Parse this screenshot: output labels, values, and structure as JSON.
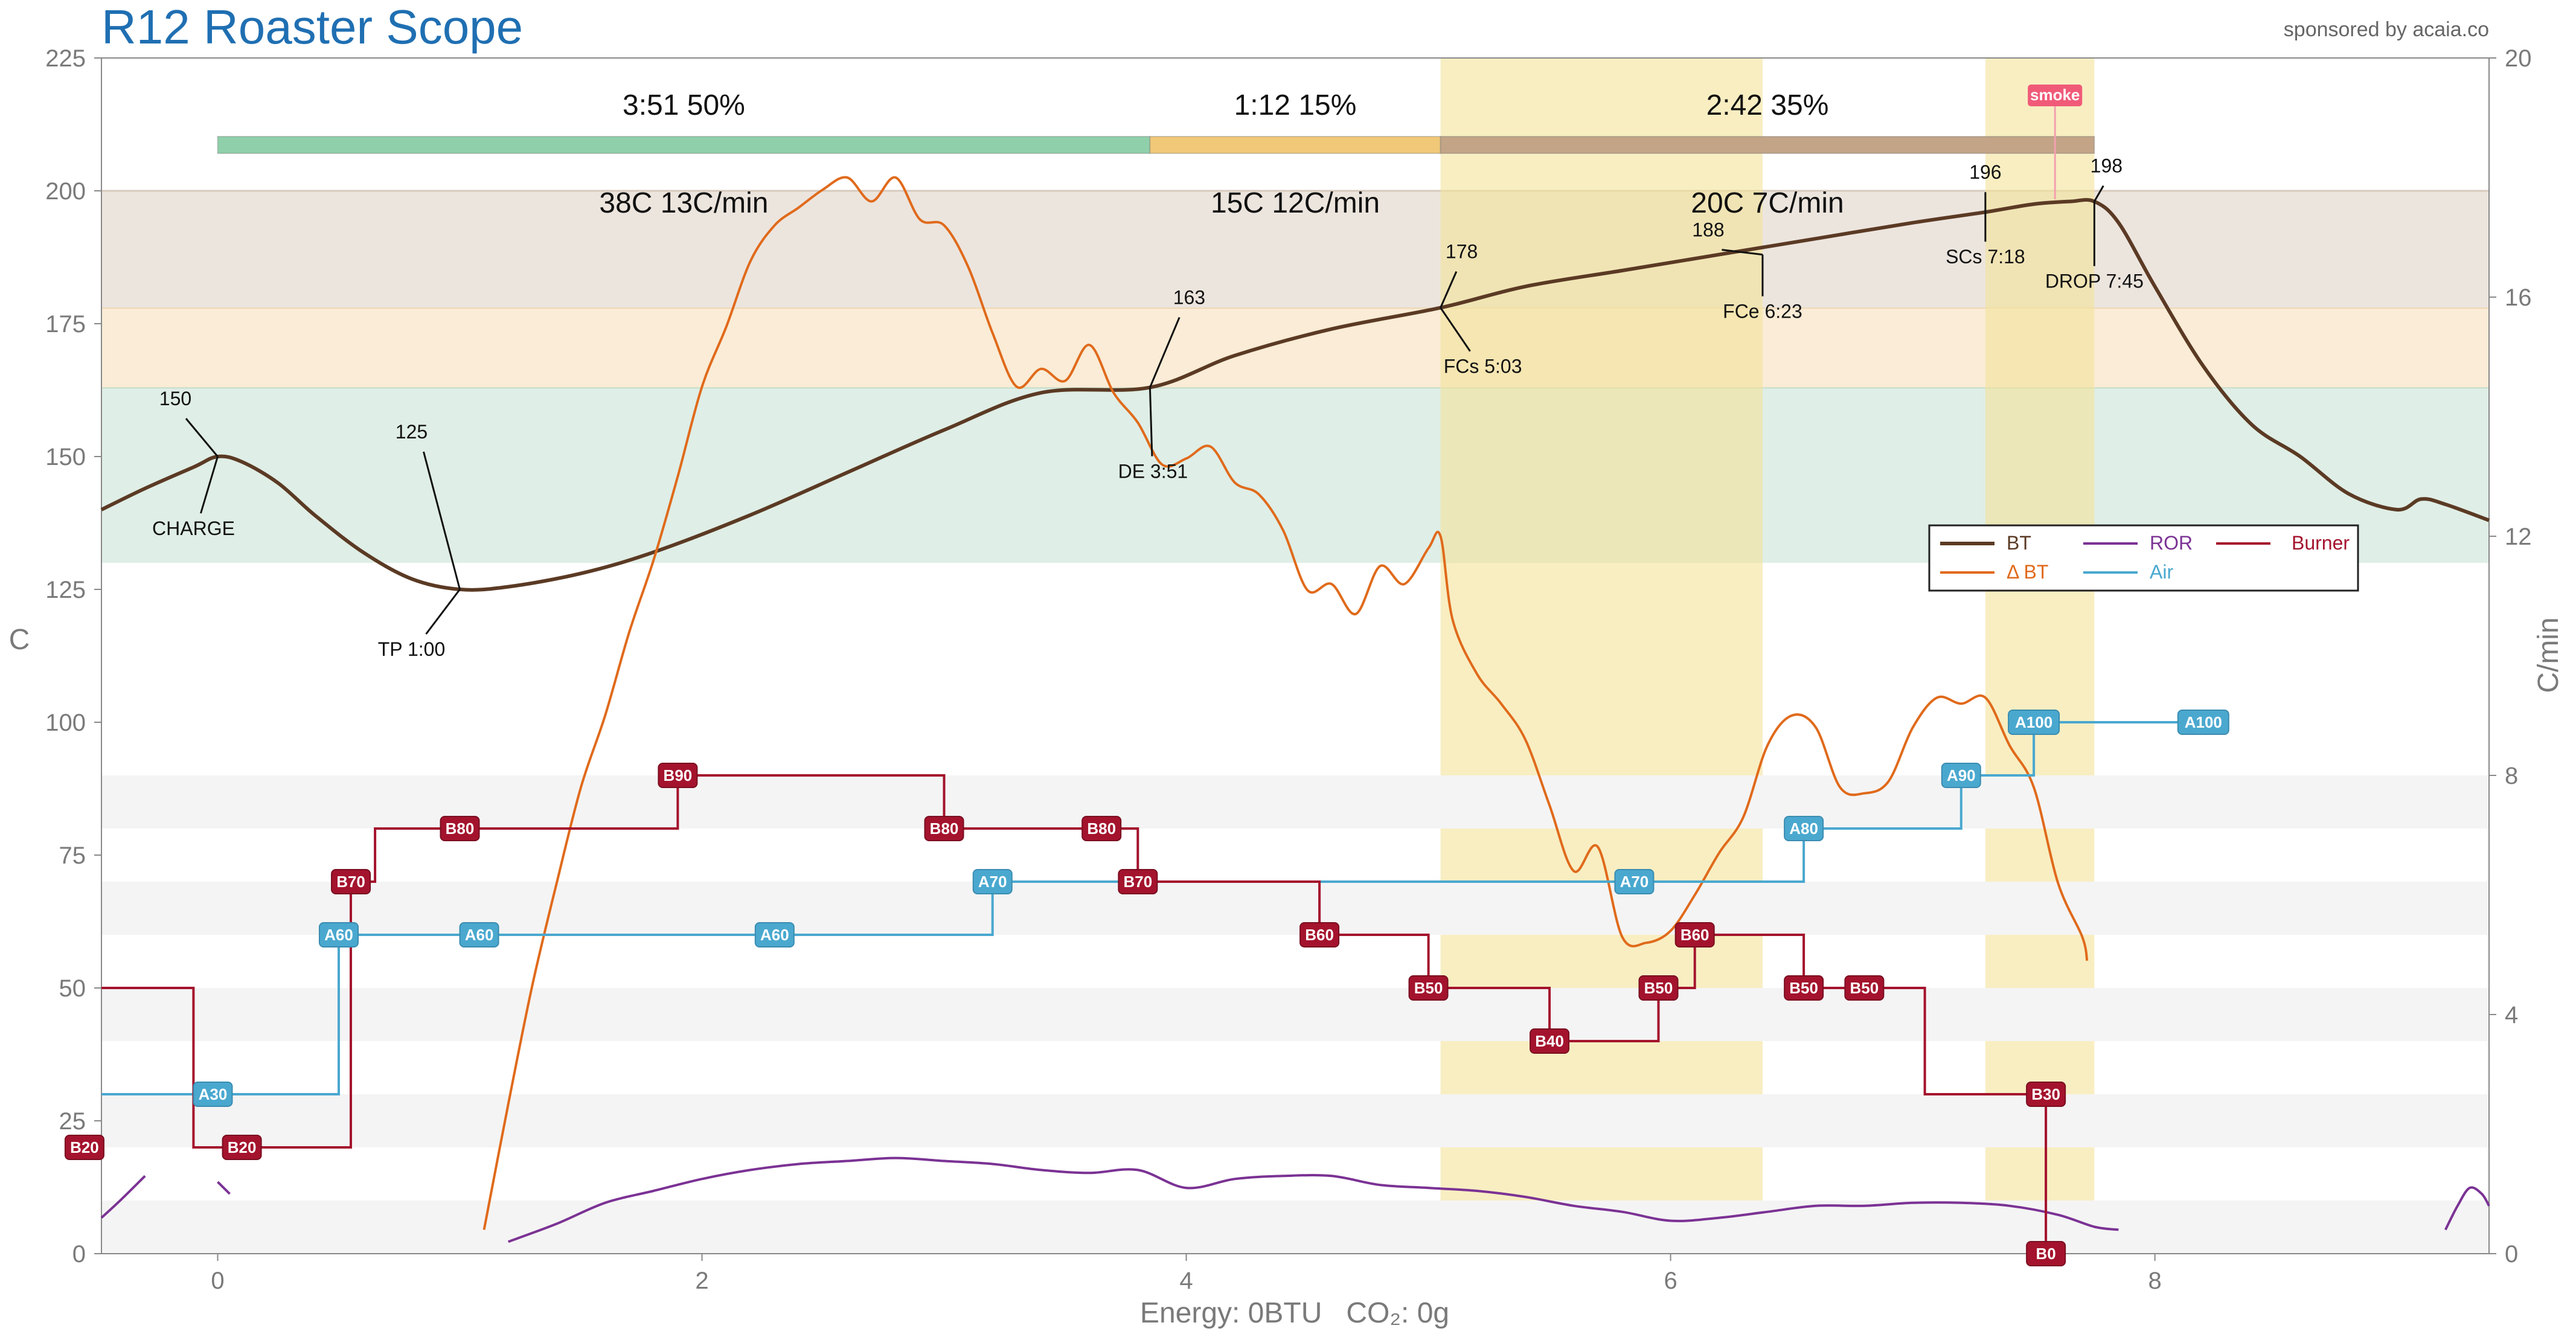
{
  "app_title": "R12 Roaster Scope",
  "sponsor": "sponsored by acaia.co",
  "footer": "Energy: 0BTU   CO₂: 0g",
  "colors": {
    "bt": "#5b3a24",
    "dbt": "#e06a1b",
    "ror": "#7b3294",
    "air": "#4aa8cf",
    "burner": "#a4132d",
    "green_band": "#dfeee6",
    "yellow_band": "#faecd6",
    "brown_band": "#ece5de",
    "fc_band": "#f3e39a",
    "phase_dry": "#8fd0aa",
    "phase_mai": "#f0c878",
    "phase_dev": "#c3a487"
  },
  "chart_data": {
    "type": "line",
    "title": "R12 Roaster Scope",
    "xlabel": "Energy: 0BTU   CO₂: 0g",
    "ylabel": "C",
    "y2label": "C/min",
    "xlim": [
      -0.48,
      9.38
    ],
    "ylim": [
      0,
      225
    ],
    "y2lim": [
      0,
      20
    ],
    "x_ticks": [
      "0",
      "2",
      "4",
      "6",
      "8"
    ],
    "y_ticks": [
      "0",
      "25",
      "50",
      "75",
      "100",
      "125",
      "150",
      "175",
      "200",
      "225"
    ],
    "y2_ticks": [
      "0",
      "4",
      "8",
      "12",
      "16",
      "20"
    ],
    "bands_y": [
      {
        "from": 130,
        "to": 163,
        "color": "green"
      },
      {
        "from": 163,
        "to": 178,
        "color": "yellow"
      },
      {
        "from": 178,
        "to": 200,
        "color": "brown"
      }
    ],
    "bands_x": [
      {
        "from": 5.05,
        "to": 6.38
      },
      {
        "from": 7.3,
        "to": 7.75
      }
    ],
    "phases": [
      {
        "label": "3:51  50%",
        "delta": "38C  13C/min",
        "from": 0.0,
        "to": 3.85,
        "color": "dry"
      },
      {
        "label": "1:12  15%",
        "delta": "15C  12C/min",
        "from": 3.85,
        "to": 5.05,
        "color": "mai"
      },
      {
        "label": "2:42  35%",
        "delta": "20C  7C/min",
        "from": 5.05,
        "to": 7.75,
        "color": "dev"
      }
    ],
    "events": [
      {
        "label": "CHARGE",
        "temp": "150",
        "x": 0.0,
        "y": 150,
        "dir": "down"
      },
      {
        "label": "TP 1:00",
        "temp": "125",
        "x": 1.0,
        "y": 125,
        "dir": "down"
      },
      {
        "label": "DE 3:51",
        "temp": "163",
        "x": 3.85,
        "y": 163,
        "dir": "down"
      },
      {
        "label": "FCs 5:03",
        "temp": "178",
        "x": 5.05,
        "y": 178,
        "dir": "down"
      },
      {
        "label": "FCe 6:23",
        "temp": "188",
        "x": 6.38,
        "y": 188,
        "dir": "down"
      },
      {
        "label": "SCs 7:18",
        "temp": "196",
        "x": 7.3,
        "y": 196,
        "dir": "down"
      },
      {
        "label": "DROP 7:45",
        "temp": "198",
        "x": 7.75,
        "y": 198,
        "dir": "down"
      }
    ],
    "smoke": {
      "label": "smoke",
      "x": 7.6
    },
    "series": [
      {
        "name": "BT",
        "key": "bt",
        "axis": "left",
        "x": [
          -0.48,
          -0.3,
          -0.1,
          0.0,
          0.1,
          0.25,
          0.4,
          0.6,
          0.8,
          1.0,
          1.2,
          1.5,
          1.8,
          2.2,
          2.6,
          3.0,
          3.4,
          3.85,
          4.2,
          4.6,
          5.05,
          5.4,
          5.8,
          6.2,
          6.6,
          7.0,
          7.3,
          7.5,
          7.65,
          7.75,
          7.85,
          8.0,
          8.2,
          8.4,
          8.6,
          8.8,
          9.0,
          9.1,
          9.2,
          9.38
        ],
        "y": [
          140,
          144,
          148,
          150,
          149,
          145,
          139,
          132,
          127,
          125,
          125.5,
          128,
          132,
          139,
          147,
          155,
          162,
          163,
          169,
          174,
          178,
          182,
          185,
          188,
          191,
          194,
          196,
          197.5,
          198,
          198,
          194,
          182,
          167,
          156,
          150,
          143,
          140,
          142,
          141,
          138
        ]
      },
      {
        "name": "ΔBT",
        "key": "dbt",
        "axis": "right",
        "x": [
          1.1,
          1.2,
          1.3,
          1.4,
          1.5,
          1.6,
          1.7,
          1.8,
          1.9,
          2.0,
          2.1,
          2.2,
          2.3,
          2.4,
          2.5,
          2.6,
          2.7,
          2.8,
          2.9,
          3.0,
          3.1,
          3.2,
          3.3,
          3.4,
          3.5,
          3.6,
          3.7,
          3.8,
          3.9,
          4.0,
          4.1,
          4.2,
          4.3,
          4.4,
          4.5,
          4.6,
          4.7,
          4.8,
          4.9,
          5.0,
          5.05,
          5.1,
          5.2,
          5.3,
          5.4,
          5.5,
          5.6,
          5.7,
          5.8,
          5.9,
          6.0,
          6.1,
          6.2,
          6.3,
          6.4,
          6.5,
          6.6,
          6.7,
          6.8,
          6.9,
          7.0,
          7.1,
          7.2,
          7.3,
          7.4,
          7.5,
          7.6,
          7.7,
          7.72
        ],
        "y": [
          0.4,
          2.5,
          4.5,
          6.2,
          7.8,
          9.0,
          10.4,
          11.6,
          13.0,
          14.5,
          15.5,
          16.6,
          17.2,
          17.5,
          17.8,
          18.0,
          17.6,
          18.0,
          17.3,
          17.2,
          16.5,
          15.4,
          14.5,
          14.8,
          14.6,
          15.2,
          14.4,
          13.9,
          13.2,
          13.3,
          13.5,
          12.9,
          12.7,
          12.1,
          11.1,
          11.2,
          10.7,
          11.5,
          11.2,
          11.8,
          12.0,
          10.6,
          9.7,
          9.2,
          8.6,
          7.5,
          6.4,
          6.8,
          5.3,
          5.2,
          5.4,
          6.0,
          6.7,
          7.3,
          8.5,
          9.0,
          8.8,
          7.8,
          7.7,
          7.9,
          8.8,
          9.3,
          9.2,
          9.3,
          8.5,
          7.8,
          6.2,
          5.3,
          4.9
        ]
      },
      {
        "name": "ROR",
        "key": "ror",
        "axis": "right",
        "segments": [
          {
            "x": [
              -0.48,
              -0.4,
              -0.3
            ],
            "y": [
              0.6,
              0.9,
              1.3
            ]
          },
          {
            "x": [
              0.0,
              0.05
            ],
            "y": [
              1.2,
              1.0
            ]
          },
          {
            "x": [
              1.2,
              1.4,
              1.6,
              1.8,
              2.0,
              2.2,
              2.4,
              2.6,
              2.8,
              3.0,
              3.2,
              3.4,
              3.6,
              3.8,
              4.0,
              4.2,
              4.4,
              4.6,
              4.8,
              5.0,
              5.2,
              5.4,
              5.6,
              5.8,
              6.0,
              6.2,
              6.4,
              6.6,
              6.8,
              7.0,
              7.2,
              7.4,
              7.6,
              7.75,
              7.85
            ],
            "y": [
              0.2,
              0.5,
              0.85,
              1.05,
              1.25,
              1.4,
              1.5,
              1.55,
              1.6,
              1.55,
              1.5,
              1.4,
              1.35,
              1.4,
              1.1,
              1.25,
              1.3,
              1.3,
              1.15,
              1.1,
              1.05,
              0.95,
              0.8,
              0.7,
              0.55,
              0.6,
              0.7,
              0.8,
              0.8,
              0.85,
              0.85,
              0.8,
              0.65,
              0.45,
              0.4
            ]
          },
          {
            "x": [
              9.2,
              9.25,
              9.3,
              9.35,
              9.38
            ],
            "y": [
              0.4,
              0.8,
              1.1,
              1.0,
              0.8
            ]
          }
        ]
      },
      {
        "name": "Air",
        "key": "air",
        "axis": "left",
        "steps": [
          [
            -0.48,
            30
          ],
          [
            0.5,
            30
          ],
          [
            0.5,
            60
          ],
          [
            3.2,
            60
          ],
          [
            3.2,
            70
          ],
          [
            6.55,
            70
          ],
          [
            6.55,
            80
          ],
          [
            7.2,
            80
          ],
          [
            7.2,
            90
          ],
          [
            7.5,
            90
          ],
          [
            7.5,
            100
          ],
          [
            8.2,
            100
          ]
        ]
      },
      {
        "name": "Burner",
        "key": "burner",
        "axis": "left",
        "steps": [
          [
            -0.48,
            50
          ],
          [
            -0.1,
            50
          ],
          [
            -0.1,
            20
          ],
          [
            0.55,
            20
          ],
          [
            0.55,
            70
          ],
          [
            0.65,
            70
          ],
          [
            0.65,
            80
          ],
          [
            1.9,
            80
          ],
          [
            1.9,
            90
          ],
          [
            3.0,
            90
          ],
          [
            3.0,
            80
          ],
          [
            3.8,
            80
          ],
          [
            3.8,
            70
          ],
          [
            4.55,
            70
          ],
          [
            4.55,
            60
          ],
          [
            5.0,
            60
          ],
          [
            5.0,
            50
          ],
          [
            5.5,
            50
          ],
          [
            5.5,
            40
          ],
          [
            5.95,
            40
          ],
          [
            5.95,
            50
          ],
          [
            6.1,
            50
          ],
          [
            6.1,
            60
          ],
          [
            6.55,
            60
          ],
          [
            6.55,
            50
          ],
          [
            7.05,
            50
          ],
          [
            7.05,
            30
          ],
          [
            7.55,
            30
          ],
          [
            7.55,
            0
          ]
        ]
      }
    ],
    "markers": [
      {
        "series": "air",
        "label": "A30",
        "x": -0.02,
        "y": 30
      },
      {
        "series": "air",
        "label": "A60",
        "x": 0.5,
        "y": 60
      },
      {
        "series": "air",
        "label": "A60",
        "x": 1.08,
        "y": 60
      },
      {
        "series": "air",
        "label": "A60",
        "x": 2.3,
        "y": 60
      },
      {
        "series": "air",
        "label": "A70",
        "x": 3.2,
        "y": 70
      },
      {
        "series": "air",
        "label": "A70",
        "x": 5.85,
        "y": 70
      },
      {
        "series": "air",
        "label": "A80",
        "x": 6.55,
        "y": 80
      },
      {
        "series": "air",
        "label": "A90",
        "x": 7.2,
        "y": 90
      },
      {
        "series": "air",
        "label": "A100",
        "x": 7.5,
        "y": 100
      },
      {
        "series": "air",
        "label": "A100",
        "x": 8.2,
        "y": 100
      },
      {
        "series": "burner",
        "label": "B20",
        "x": -0.55,
        "y": 20
      },
      {
        "series": "burner",
        "label": "B20",
        "x": 0.1,
        "y": 20
      },
      {
        "series": "burner",
        "label": "B70",
        "x": 0.55,
        "y": 70
      },
      {
        "series": "burner",
        "label": "B80",
        "x": 1.0,
        "y": 80
      },
      {
        "series": "burner",
        "label": "B90",
        "x": 1.9,
        "y": 90
      },
      {
        "series": "burner",
        "label": "B80",
        "x": 3.0,
        "y": 80
      },
      {
        "series": "burner",
        "label": "B80",
        "x": 3.65,
        "y": 80
      },
      {
        "series": "burner",
        "label": "B70",
        "x": 3.8,
        "y": 70
      },
      {
        "series": "burner",
        "label": "B60",
        "x": 4.55,
        "y": 60
      },
      {
        "series": "burner",
        "label": "B50",
        "x": 5.0,
        "y": 50
      },
      {
        "series": "burner",
        "label": "B40",
        "x": 5.5,
        "y": 40
      },
      {
        "series": "burner",
        "label": "B50",
        "x": 5.95,
        "y": 50
      },
      {
        "series": "burner",
        "label": "B60",
        "x": 6.1,
        "y": 60
      },
      {
        "series": "burner",
        "label": "B50",
        "x": 6.55,
        "y": 50
      },
      {
        "series": "burner",
        "label": "B50",
        "x": 6.8,
        "y": 50
      },
      {
        "series": "burner",
        "label": "B30",
        "x": 7.55,
        "y": 30
      },
      {
        "series": "burner",
        "label": "B0",
        "x": 7.55,
        "y": 0
      }
    ],
    "legend": {
      "placement": "right",
      "items": [
        {
          "label": "BT",
          "key": "bt"
        },
        {
          "label": "ROR",
          "key": "ror"
        },
        {
          "label": "Burner",
          "key": "burner"
        },
        {
          "label": "Δ BT",
          "key": "dbt"
        },
        {
          "label": "Air",
          "key": "air"
        }
      ]
    }
  }
}
